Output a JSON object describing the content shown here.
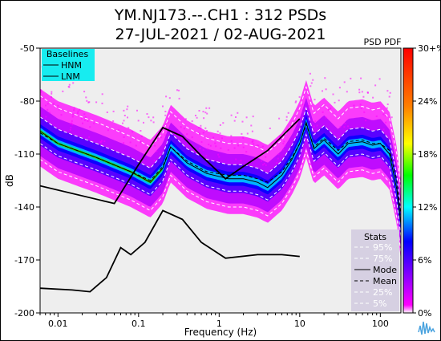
{
  "chart_data": {
    "type": "heatmap",
    "title": "YM.NJ173.--.CH1 : 312 PSDs",
    "subtitle": "27-JUL-2021 / 02-AUG-2021",
    "xlabel": "Frequency (Hz)",
    "ylabel": "dB",
    "xscale": "log",
    "xlim": [
      0.006,
      180
    ],
    "ylim": [
      -200,
      -50
    ],
    "x_ticks": [
      "0.01",
      "0.1",
      "1",
      "10",
      "100"
    ],
    "y_ticks": [
      "-50",
      "-80",
      "-110",
      "-140",
      "-170",
      "-200"
    ],
    "colorbar": {
      "label": "PSD PDF",
      "ticks": [
        "30+%",
        "24%",
        "18%",
        "12%",
        "6%",
        "0%"
      ],
      "colors": [
        "#ff0000",
        "#ff7f00",
        "#ffff00",
        "#00ff00",
        "#00ffff",
        "#0000ff",
        "#7f00ff",
        "#ff00ff",
        "#ffffff"
      ]
    },
    "baselines": {
      "title": "Baselines",
      "entries": [
        "HNM",
        "LNM"
      ],
      "HNM": [
        [
          0.006,
          -128
        ],
        [
          0.05,
          -138
        ],
        [
          0.1,
          -116
        ],
        [
          0.2,
          -95
        ],
        [
          0.35,
          -100
        ],
        [
          0.6,
          -111
        ],
        [
          1.2,
          -124
        ],
        [
          2,
          -117
        ],
        [
          4,
          -108
        ],
        [
          10,
          -90
        ]
      ],
      "LNM": [
        [
          0.006,
          -186
        ],
        [
          0.015,
          -187
        ],
        [
          0.025,
          -188
        ],
        [
          0.04,
          -180
        ],
        [
          0.06,
          -163
        ],
        [
          0.08,
          -167
        ],
        [
          0.12,
          -160
        ],
        [
          0.2,
          -142
        ],
        [
          0.35,
          -147
        ],
        [
          0.6,
          -160
        ],
        [
          1.2,
          -169
        ],
        [
          3,
          -167
        ],
        [
          6,
          -167
        ],
        [
          10,
          -168
        ]
      ]
    },
    "stats": {
      "title": "Stats",
      "entries": [
        "95%",
        "75%",
        "Mode",
        "Mean",
        "25%",
        "5%"
      ]
    },
    "series": [
      {
        "name": "Mode",
        "x": [
          0.006,
          0.01,
          0.03,
          0.08,
          0.14,
          0.2,
          0.25,
          0.4,
          0.7,
          1.3,
          2,
          3,
          4,
          6,
          8,
          10,
          12,
          15,
          20,
          30,
          40,
          60,
          80,
          100,
          130,
          160,
          180
        ],
        "y": [
          -97,
          -104,
          -112,
          -120,
          -126,
          -118,
          -106,
          -115,
          -121,
          -124,
          -124,
          -126,
          -129,
          -122,
          -113,
          -104,
          -92,
          -107,
          -102,
          -110,
          -104,
          -103,
          -105,
          -104,
          -110,
          -130,
          -150
        ]
      },
      {
        "name": "Mean",
        "x": [
          0.006,
          0.01,
          0.03,
          0.08,
          0.14,
          0.2,
          0.25,
          0.4,
          0.7,
          1.3,
          2,
          3,
          4,
          6,
          8,
          10,
          12,
          15,
          20,
          30,
          40,
          60,
          80,
          100,
          130,
          160,
          180
        ],
        "y": [
          -98,
          -104,
          -112,
          -120,
          -125,
          -117,
          -106,
          -114,
          -120,
          -122,
          -122,
          -124,
          -126,
          -120,
          -112,
          -104,
          -93,
          -106,
          -101,
          -108,
          -103,
          -102,
          -104,
          -104,
          -108,
          -125,
          -145
        ]
      }
    ]
  }
}
